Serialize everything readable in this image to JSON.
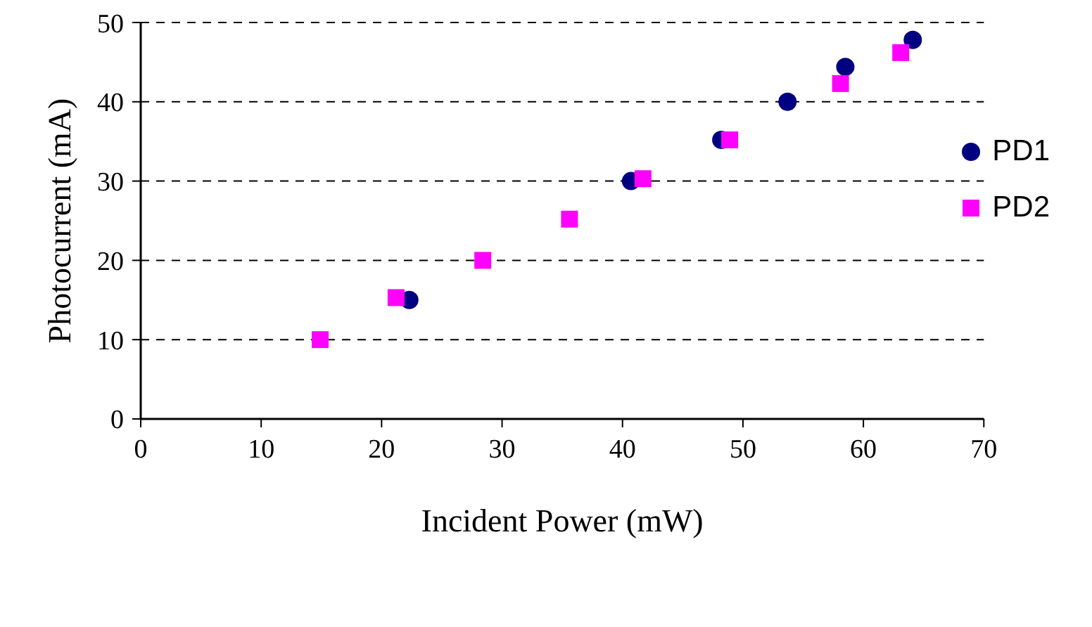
{
  "chart_data": {
    "type": "scatter",
    "xlabel": "Incident Power (mW)",
    "ylabel": "Photocurrent (mA)",
    "xlim": [
      0,
      70
    ],
    "xticks": [
      0,
      10,
      20,
      30,
      40,
      50,
      60,
      70
    ],
    "ylim": [
      0,
      50
    ],
    "yticks": [
      0,
      10,
      20,
      30,
      40,
      50
    ],
    "grid": "y",
    "legend": "right",
    "series": [
      {
        "name": "PD1",
        "color": "#000080",
        "marker": "circle",
        "x": [
          22.3,
          40.7,
          48.2,
          53.7,
          58.5,
          64.1
        ],
        "values": [
          15,
          30,
          35.2,
          40,
          44.4,
          47.8
        ]
      },
      {
        "name": "PD2",
        "color": "#ff00ff",
        "marker": "square",
        "x": [
          14.9,
          21.2,
          28.4,
          35.6,
          41.7,
          48.9,
          58.1,
          63.1
        ],
        "values": [
          10,
          15.3,
          20,
          25.2,
          30.3,
          35.2,
          42.3,
          46.2
        ]
      }
    ]
  }
}
